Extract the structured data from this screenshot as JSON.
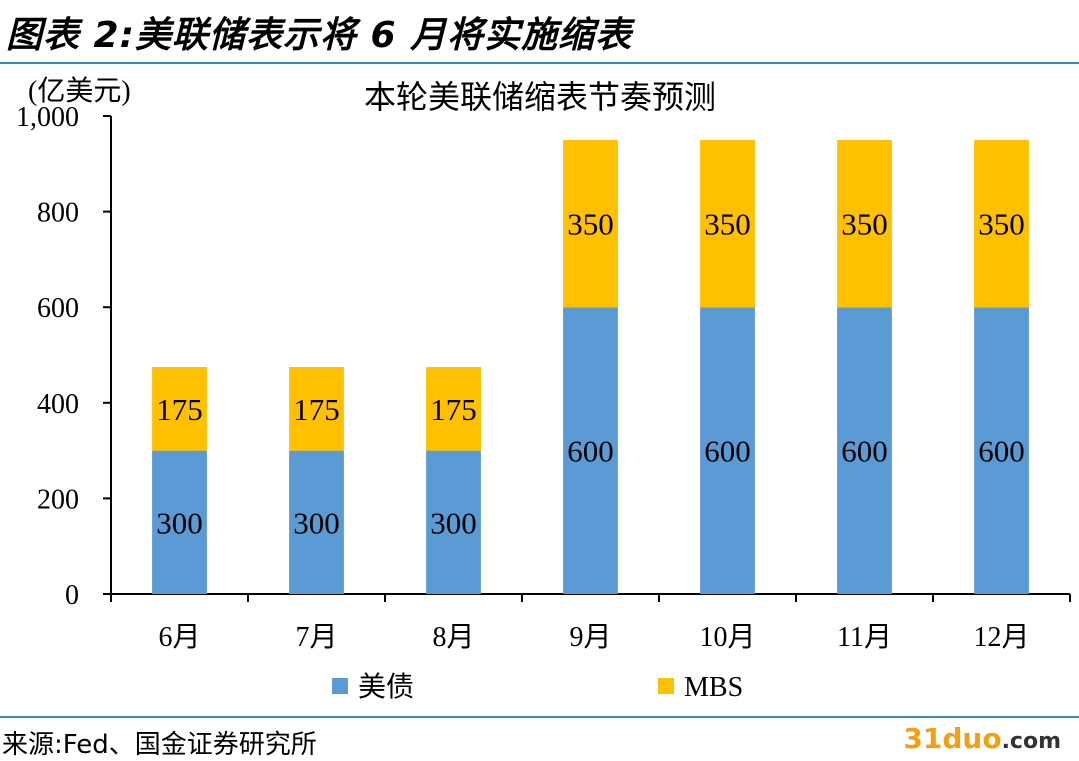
{
  "figure": {
    "title": "图表 2:美联储表示将 6 月将实施缩表",
    "source": "来源:Fed、国金证券研究所",
    "watermark": {
      "num": "31",
      "name": "duo",
      "domain": ".com"
    }
  },
  "colors": {
    "rule": "#2f8fbf",
    "treasury": "#5b9bd5",
    "mbs": "#ffc000"
  },
  "chart_data": {
    "type": "bar",
    "stacked": true,
    "title": "本轮美联储缩表节奏预测",
    "unit_label": "(亿美元)",
    "categories": [
      "6月",
      "7月",
      "8月",
      "9月",
      "10月",
      "11月",
      "12月"
    ],
    "series": [
      {
        "name": "美债",
        "values": [
          300,
          300,
          300,
          600,
          600,
          600,
          600
        ]
      },
      {
        "name": "MBS",
        "values": [
          175,
          175,
          175,
          350,
          350,
          350,
          350
        ]
      }
    ],
    "ylim": [
      0,
      1000
    ],
    "yticks": [
      0,
      200,
      400,
      600,
      800,
      1000
    ],
    "ytick_labels": [
      "0",
      "200",
      "400",
      "600",
      "800",
      "1,000"
    ],
    "data_labels": true,
    "grid": false,
    "legend_position": "bottom"
  }
}
